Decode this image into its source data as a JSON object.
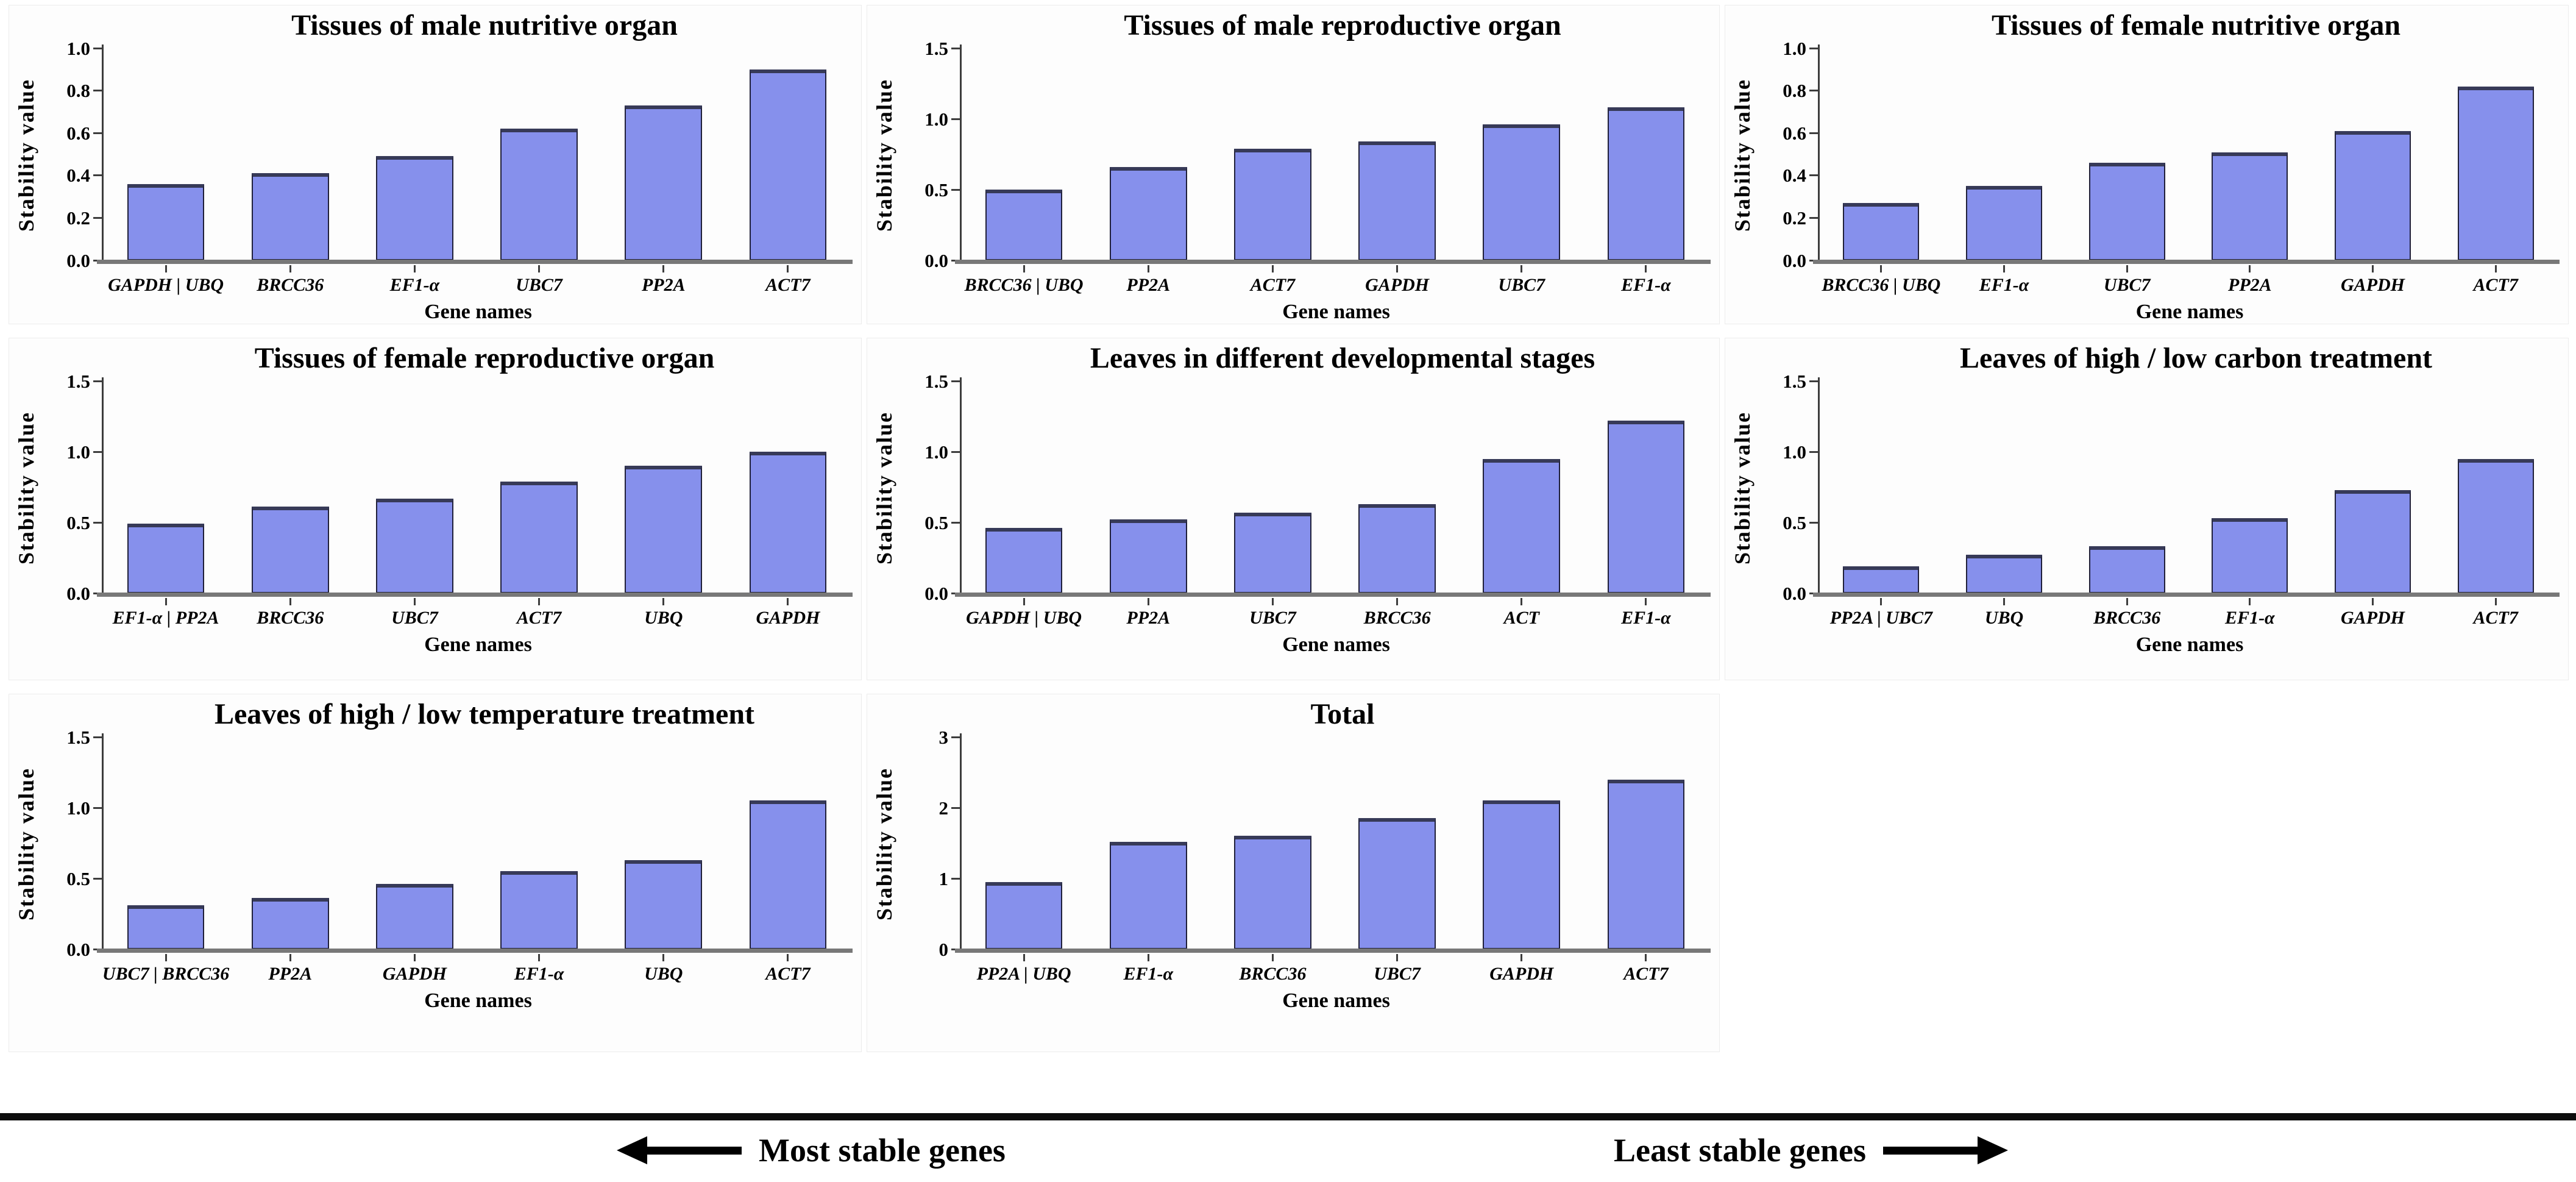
{
  "figure": {
    "background": "#ffffff",
    "panel_background": "#fdfdfd",
    "panel_border": "#ececec",
    "bar_fill": "#8690EC",
    "bar_border": "#20203A",
    "bar_cap": "#373A58",
    "axis_color": "#3D3D3D",
    "baseline_color": "#787878",
    "text_color": "#000000"
  },
  "footer": {
    "most_stable_label": "Most stable genes",
    "least_stable_label": "Least stable genes",
    "left_arrow_icon": "arrow-left",
    "right_arrow_icon": "arrow-right"
  },
  "chart_data": [
    {
      "type": "bar",
      "title": "Tissues of male nutritive organ",
      "xlabel": "Gene names",
      "ylabel": "Stability value",
      "ylim": [
        0,
        1.0
      ],
      "yticks": [
        "0.0",
        "0.2",
        "0.4",
        "0.6",
        "0.8",
        "1.0"
      ],
      "categories": [
        "GAPDH | UBQ",
        "BRCC36",
        "EF1-α",
        "UBC7",
        "PP2A",
        "ACT7"
      ],
      "values": [
        0.36,
        0.41,
        0.49,
        0.62,
        0.73,
        0.9
      ],
      "grid": false,
      "legend": "none"
    },
    {
      "type": "bar",
      "title": "Tissues of male reproductive organ",
      "xlabel": "Gene names",
      "ylabel": "Stability value",
      "ylim": [
        0,
        1.5
      ],
      "yticks": [
        "0.0",
        "0.5",
        "1.0",
        "1.5"
      ],
      "categories": [
        "BRCC36 | UBQ",
        "PP2A",
        "ACT7",
        "GAPDH",
        "UBC7",
        "EF1-α"
      ],
      "values": [
        0.5,
        0.66,
        0.79,
        0.84,
        0.96,
        1.08
      ],
      "grid": false,
      "legend": "none"
    },
    {
      "type": "bar",
      "title": "Tissues of female nutritive organ",
      "xlabel": "Gene names",
      "ylabel": "Stability value",
      "ylim": [
        0,
        1.0
      ],
      "yticks": [
        "0.0",
        "0.2",
        "0.4",
        "0.6",
        "0.8",
        "1.0"
      ],
      "categories": [
        "BRCC36 | UBQ",
        "EF1-α",
        "UBC7",
        "PP2A",
        "GAPDH",
        "ACT7"
      ],
      "values": [
        0.27,
        0.35,
        0.46,
        0.51,
        0.61,
        0.82
      ],
      "grid": false,
      "legend": "none"
    },
    {
      "type": "bar",
      "title": "Tissues of female reproductive organ",
      "xlabel": "Gene names",
      "ylabel": "Stability value",
      "ylim": [
        0,
        1.5
      ],
      "yticks": [
        "0.0",
        "0.5",
        "1.0",
        "1.5"
      ],
      "categories": [
        "EF1-α | PP2A",
        "BRCC36",
        "UBC7",
        "ACT7",
        "UBQ",
        "GAPDH"
      ],
      "values": [
        0.49,
        0.61,
        0.67,
        0.79,
        0.9,
        1.0
      ],
      "grid": false,
      "legend": "none"
    },
    {
      "type": "bar",
      "title": "Leaves in different developmental stages",
      "xlabel": "Gene names",
      "ylabel": "Stability value",
      "ylim": [
        0,
        1.5
      ],
      "yticks": [
        "0.0",
        "0.5",
        "1.0",
        "1.5"
      ],
      "categories": [
        "GAPDH | UBQ",
        "PP2A",
        "UBC7",
        "BRCC36",
        "ACT",
        "EF1-α"
      ],
      "values": [
        0.46,
        0.52,
        0.57,
        0.63,
        0.95,
        1.22
      ],
      "grid": false,
      "legend": "none"
    },
    {
      "type": "bar",
      "title": "Leaves of high / low carbon treatment",
      "xlabel": "Gene names",
      "ylabel": "Stability value",
      "ylim": [
        0,
        1.5
      ],
      "yticks": [
        "0.0",
        "0.5",
        "1.0",
        "1.5"
      ],
      "categories": [
        "PP2A | UBC7",
        "UBQ",
        "BRCC36",
        "EF1-α",
        "GAPDH",
        "ACT7"
      ],
      "values": [
        0.19,
        0.27,
        0.33,
        0.53,
        0.73,
        0.95
      ],
      "grid": false,
      "legend": "none"
    },
    {
      "type": "bar",
      "title": "Leaves of high / low temperature treatment",
      "xlabel": "Gene names",
      "ylabel": "Stability value",
      "ylim": [
        0,
        1.5
      ],
      "yticks": [
        "0.0",
        "0.5",
        "1.0",
        "1.5"
      ],
      "categories": [
        "UBC7 | BRCC36",
        "PP2A",
        "GAPDH",
        "EF1-α",
        "UBQ",
        "ACT7"
      ],
      "values": [
        0.31,
        0.36,
        0.46,
        0.55,
        0.63,
        1.05
      ],
      "grid": false,
      "legend": "none"
    },
    {
      "type": "bar",
      "title": "Total",
      "xlabel": "Gene names",
      "ylabel": "Stability value",
      "ylim": [
        0,
        3
      ],
      "yticks": [
        "0",
        "1",
        "2",
        "3"
      ],
      "categories": [
        "PP2A | UBQ",
        "EF1-α",
        "BRCC36",
        "UBC7",
        "GAPDH",
        "ACT7"
      ],
      "values": [
        0.95,
        1.52,
        1.6,
        1.85,
        2.1,
        2.4
      ],
      "grid": false,
      "legend": "none"
    }
  ]
}
